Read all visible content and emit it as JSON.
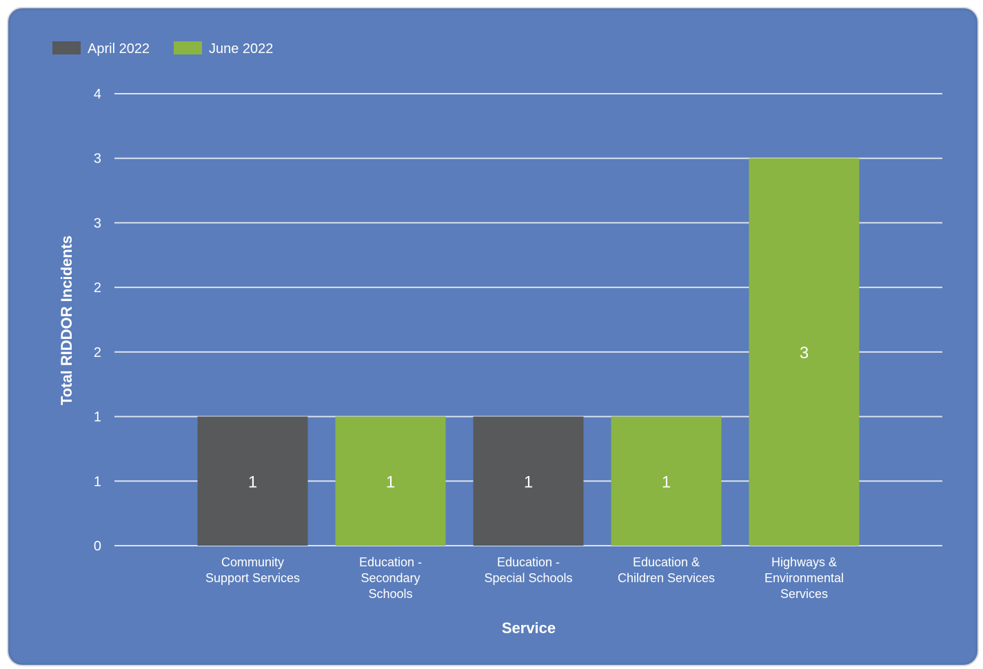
{
  "chart_data": {
    "type": "bar",
    "categories": [
      [
        "Community",
        "Support Services"
      ],
      [
        "Education -",
        "Secondary",
        "Schools"
      ],
      [
        "Education -",
        "Special Schools"
      ],
      [
        "Education &",
        "Children Services"
      ],
      [
        "Highways &",
        "Environmental",
        "Services"
      ]
    ],
    "series": [
      {
        "name": "April 2022",
        "color": "#58595b"
      },
      {
        "name": "June 2022",
        "color": "#8ab542"
      }
    ],
    "bars": [
      {
        "series": 0,
        "value": 1,
        "label": "1"
      },
      {
        "series": 1,
        "value": 1,
        "label": "1"
      },
      {
        "series": 0,
        "value": 1,
        "label": "1"
      },
      {
        "series": 1,
        "value": 1,
        "label": "1"
      },
      {
        "series": 1,
        "value": 3,
        "label": "3"
      }
    ],
    "ylim": [
      0,
      3.5
    ],
    "yticks": [
      0,
      0.5,
      1,
      1.5,
      2,
      2.5,
      3,
      3.5
    ],
    "ytick_labels": [
      "0",
      "1",
      "1",
      "2",
      "2",
      "3",
      "3",
      "4"
    ],
    "xlabel": "Service",
    "ylabel": "Total RIDDOR Incidents",
    "grid": true,
    "legend_position": "top-left",
    "background_color": "#5b7dbb",
    "gridline_color": "#dde3ef"
  }
}
